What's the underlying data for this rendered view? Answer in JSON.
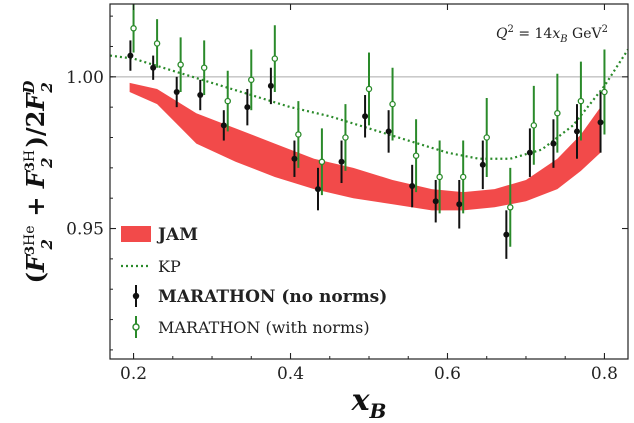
{
  "chart_data": {
    "type": "scatter",
    "title": "",
    "annotation": "Q² = 14x_B GeV²",
    "xlabel": "x_B",
    "ylabel": "(F2^3He + F2^3H)/2F2^D",
    "xlim": [
      0.17,
      0.83
    ],
    "ylim": [
      0.907,
      1.024
    ],
    "xticks": [
      0.2,
      0.4,
      0.6,
      0.8
    ],
    "xtick_labels": [
      "0.2",
      "0.4",
      "0.6",
      "0.8"
    ],
    "yticks": [
      0.95,
      1.0
    ],
    "ytick_labels": [
      "0.95",
      "1.00"
    ],
    "reference_line": 1.0,
    "series": [
      {
        "name": "JAM",
        "kind": "band",
        "color": "#f24a4a",
        "x": [
          0.195,
          0.23,
          0.28,
          0.33,
          0.38,
          0.43,
          0.48,
          0.53,
          0.58,
          0.62,
          0.66,
          0.7,
          0.74,
          0.77,
          0.795
        ],
        "upper": [
          0.998,
          0.996,
          0.988,
          0.983,
          0.978,
          0.973,
          0.97,
          0.966,
          0.963,
          0.962,
          0.963,
          0.966,
          0.973,
          0.981,
          0.99
        ],
        "lower": [
          0.995,
          0.991,
          0.978,
          0.972,
          0.967,
          0.963,
          0.96,
          0.958,
          0.956,
          0.956,
          0.957,
          0.959,
          0.963,
          0.969,
          0.975
        ]
      },
      {
        "name": "KP",
        "kind": "line",
        "color": "#2a8a2a",
        "x": [
          0.17,
          0.2,
          0.25,
          0.3,
          0.35,
          0.4,
          0.45,
          0.5,
          0.55,
          0.6,
          0.64,
          0.68,
          0.72,
          0.76,
          0.8,
          0.83
        ],
        "y": [
          1.007,
          1.006,
          1.002,
          0.998,
          0.994,
          0.99,
          0.987,
          0.983,
          0.979,
          0.975,
          0.973,
          0.973,
          0.976,
          0.984,
          0.997,
          1.009
        ]
      },
      {
        "name": "MARATHON (no norms)",
        "kind": "points",
        "color": "#111111",
        "x": [
          0.196,
          0.225,
          0.255,
          0.285,
          0.315,
          0.345,
          0.375,
          0.405,
          0.435,
          0.465,
          0.495,
          0.525,
          0.555,
          0.585,
          0.615,
          0.645,
          0.675,
          0.705,
          0.735,
          0.765,
          0.795
        ],
        "y": [
          1.007,
          1.003,
          0.995,
          0.994,
          0.984,
          0.99,
          0.997,
          0.973,
          0.963,
          0.972,
          0.987,
          0.982,
          0.964,
          0.959,
          0.958,
          0.971,
          0.948,
          0.975,
          0.978,
          0.982,
          0.985
        ],
        "err": [
          0.005,
          0.004,
          0.005,
          0.005,
          0.005,
          0.006,
          0.006,
          0.006,
          0.007,
          0.007,
          0.007,
          0.007,
          0.007,
          0.007,
          0.008,
          0.008,
          0.008,
          0.008,
          0.008,
          0.009,
          0.01
        ]
      },
      {
        "name": "MARATHON (with norms)",
        "kind": "points",
        "color": "#2a8a2a",
        "open": true,
        "x": [
          0.2,
          0.23,
          0.26,
          0.29,
          0.32,
          0.35,
          0.38,
          0.41,
          0.44,
          0.47,
          0.5,
          0.53,
          0.56,
          0.59,
          0.62,
          0.65,
          0.68,
          0.71,
          0.74,
          0.77,
          0.8
        ],
        "y": [
          1.016,
          1.011,
          1.004,
          1.003,
          0.992,
          0.999,
          1.006,
          0.981,
          0.972,
          0.98,
          0.996,
          0.991,
          0.974,
          0.967,
          0.967,
          0.98,
          0.957,
          0.984,
          0.988,
          0.992,
          0.995
        ],
        "err": [
          0.008,
          0.008,
          0.009,
          0.009,
          0.01,
          0.01,
          0.011,
          0.011,
          0.011,
          0.011,
          0.012,
          0.012,
          0.012,
          0.012,
          0.012,
          0.013,
          0.013,
          0.013,
          0.013,
          0.013,
          0.014
        ]
      }
    ],
    "legend": {
      "position": "lower-left",
      "entries": [
        {
          "label": "JAM",
          "bold": true
        },
        {
          "label": "KP",
          "bold": false
        },
        {
          "label": "MARATHON (no norms)",
          "bold": true
        },
        {
          "label": "MARATHON (with norms)",
          "bold": false
        }
      ]
    }
  }
}
